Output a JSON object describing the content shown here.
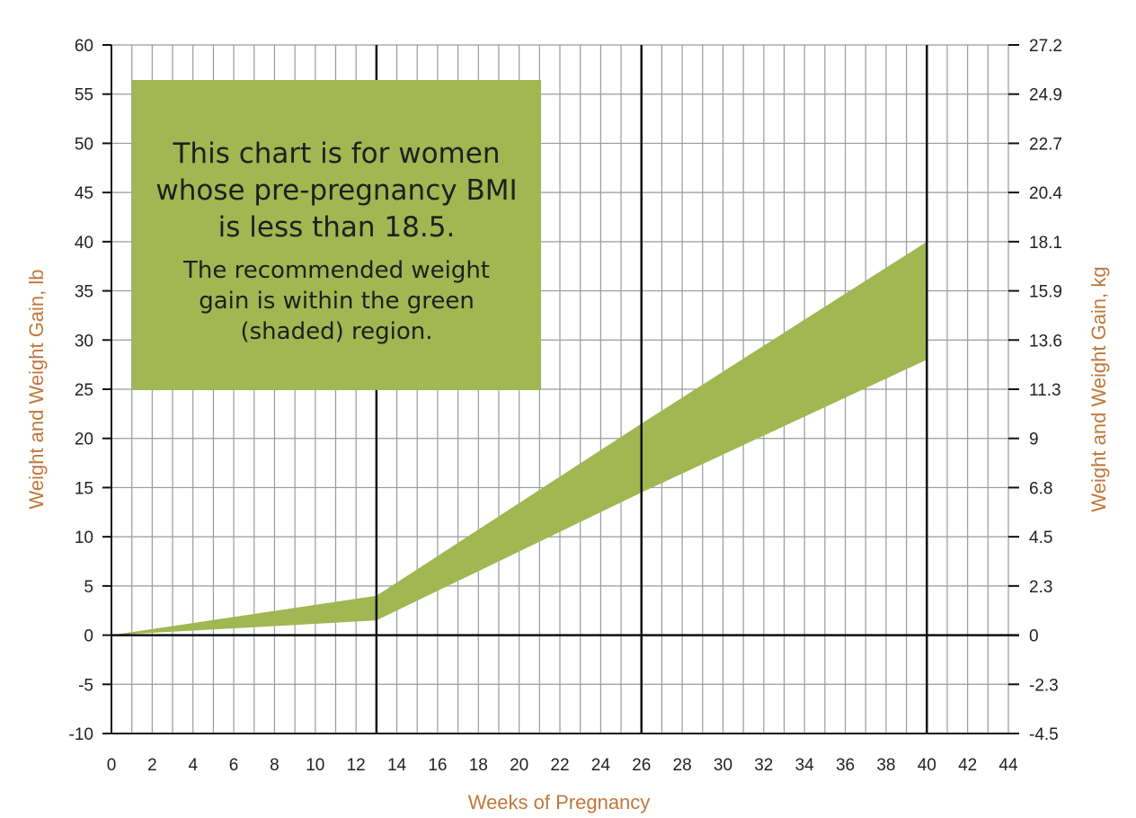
{
  "chart_data": {
    "type": "area",
    "xlabel": "Weeks of Pregnancy",
    "ylabel": "Weight and Weight Gain, lb",
    "ylabel_right": "Weight and Weight Gain, kg",
    "xlim": [
      0,
      44
    ],
    "ylim": [
      -10,
      60
    ],
    "x_ticks": [
      "0",
      "2",
      "4",
      "6",
      "8",
      "10",
      "12",
      "14",
      "16",
      "18",
      "20",
      "22",
      "24",
      "26",
      "28",
      "30",
      "32",
      "34",
      "36",
      "38",
      "40",
      "42",
      "44"
    ],
    "y_ticks_left": [
      "60",
      "55",
      "50",
      "45",
      "40",
      "35",
      "30",
      "25",
      "20",
      "15",
      "10",
      "5",
      "0",
      "-5",
      "-10"
    ],
    "y_ticks_right": [
      "27.2",
      "24.9",
      "22.7",
      "20.4",
      "18.1",
      "15.9",
      "13.6",
      "11.3",
      "9",
      "6.8",
      "4.5",
      "2.3",
      "0",
      "-2.3",
      "-4.5"
    ],
    "grid": true,
    "emphasized_vertical_lines": [
      13,
      26,
      40
    ],
    "band": {
      "x": [
        0,
        13,
        26,
        40
      ],
      "upper": [
        0,
        4,
        21.5,
        40
      ],
      "lower": [
        0,
        1.5,
        14.5,
        28
      ]
    },
    "band_color": "#a2b652",
    "annotation": {
      "main": "This chart is for women whose pre-pregnancy BMI is less than 18.5.",
      "sub": "The recommended weight gain is within the green (shaded) region."
    },
    "axis_title_color": "#c0783a"
  }
}
